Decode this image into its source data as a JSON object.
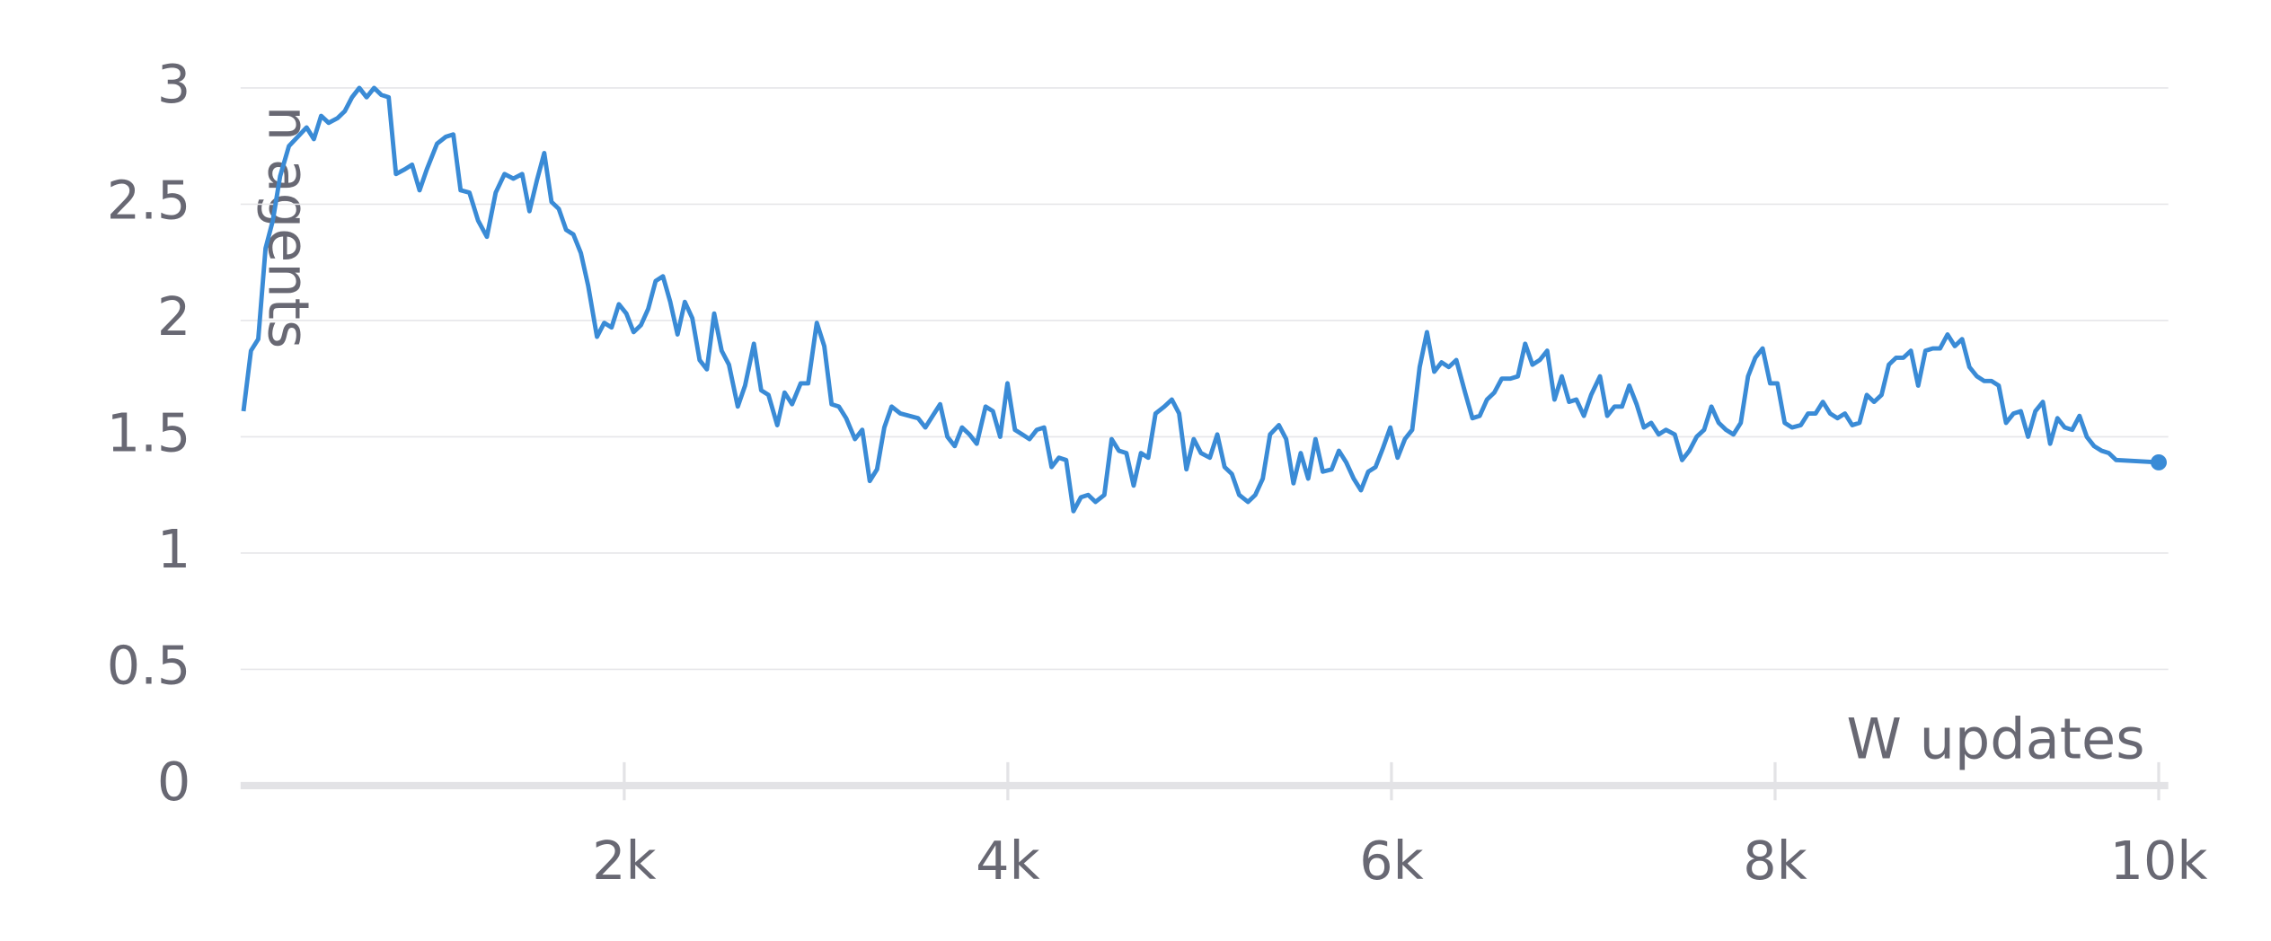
{
  "chart_data": {
    "type": "line",
    "x_label": "W updates",
    "y_label": "n agents",
    "color": "#3a8bd6",
    "grid": true,
    "xlim": [
      0,
      10050
    ],
    "ylim": [
      0,
      3
    ],
    "xticks": [
      {
        "value": 2000,
        "label": "2k"
      },
      {
        "value": 4000,
        "label": "4k"
      },
      {
        "value": 6000,
        "label": "6k"
      },
      {
        "value": 8000,
        "label": "8k"
      },
      {
        "value": 10000,
        "label": "10k"
      }
    ],
    "yticks": [
      0,
      0.5,
      1,
      1.5,
      2,
      2.5,
      3
    ],
    "x": [
      15,
      54,
      92,
      130,
      168,
      206,
      252,
      298,
      344,
      382,
      420,
      459,
      505,
      543,
      581,
      619,
      657,
      696,
      734,
      772,
      810,
      856,
      894,
      933,
      971,
      1024,
      1070,
      1109,
      1147,
      1193,
      1238,
      1284,
      1330,
      1376,
      1422,
      1468,
      1506,
      1544,
      1583,
      1621,
      1659,
      1697,
      1735,
      1774,
      1812,
      1858,
      1896,
      1934,
      1972,
      2011,
      2049,
      2087,
      2125,
      2164,
      2202,
      2240,
      2278,
      2316,
      2355,
      2393,
      2431,
      2469,
      2508,
      2546,
      2592,
      2630,
      2676,
      2714,
      2752,
      2798,
      2836,
      2875,
      2920,
      2959,
      3004,
      3043,
      3081,
      3119,
      3157,
      3203,
      3241,
      3280,
      3318,
      3356,
      3394,
      3440,
      3486,
      3532,
      3570,
      3608,
      3647,
      3685,
      3723,
      3761,
      3800,
      3838,
      3884,
      3922,
      3960,
      3998,
      4037,
      4075,
      4113,
      4151,
      4189,
      4228,
      4266,
      4304,
      4342,
      4381,
      4419,
      4457,
      4503,
      4541,
      4579,
      4618,
      4656,
      4694,
      4732,
      4770,
      4816,
      4855,
      4893,
      4931,
      4969,
      5007,
      5053,
      5092,
      5130,
      5168,
      5206,
      5252,
      5290,
      5329,
      5367,
      5413,
      5451,
      5489,
      5527,
      5566,
      5604,
      5642,
      5688,
      5726,
      5764,
      5803,
      5841,
      5879,
      5917,
      5955,
      5994,
      6032,
      6070,
      6108,
      6147,
      6185,
      6223,
      6261,
      6299,
      6338,
      6384,
      6422,
      6460,
      6498,
      6536,
      6575,
      6620,
      6659,
      6697,
      6735,
      6773,
      6812,
      6850,
      6888,
      6926,
      6964,
      7003,
      7041,
      7087,
      7125,
      7163,
      7202,
      7240,
      7278,
      7316,
      7354,
      7393,
      7431,
      7477,
      7515,
      7553,
      7591,
      7630,
      7668,
      7706,
      7744,
      7783,
      7821,
      7859,
      7897,
      7935,
      7974,
      8012,
      8050,
      8088,
      8134,
      8172,
      8211,
      8249,
      8287,
      8325,
      8364,
      8402,
      8440,
      8478,
      8516,
      8555,
      8593,
      8631,
      8669,
      8708,
      8746,
      8784,
      8822,
      8860,
      8899,
      8937,
      8975,
      9013,
      9052,
      9090,
      9128,
      9166,
      9204,
      9243,
      9281,
      9319,
      9357,
      9396,
      9434,
      9472,
      9510,
      9549,
      9587,
      9625,
      9663,
      9702,
      9740,
      9778,
      10000
    ],
    "values": [
      1.61,
      1.87,
      1.92,
      2.31,
      2.43,
      2.62,
      2.75,
      2.79,
      2.83,
      2.78,
      2.88,
      2.85,
      2.87,
      2.9,
      2.96,
      3.0,
      2.96,
      3.0,
      2.97,
      2.96,
      2.63,
      2.65,
      2.67,
      2.56,
      2.65,
      2.76,
      2.79,
      2.8,
      2.56,
      2.55,
      2.43,
      2.36,
      2.55,
      2.63,
      2.61,
      2.63,
      2.47,
      2.6,
      2.72,
      2.51,
      2.48,
      2.39,
      2.37,
      2.29,
      2.15,
      1.93,
      1.99,
      1.97,
      2.07,
      2.03,
      1.95,
      1.98,
      2.05,
      2.17,
      2.19,
      2.08,
      1.94,
      2.08,
      2.01,
      1.83,
      1.79,
      2.03,
      1.87,
      1.81,
      1.63,
      1.72,
      1.9,
      1.7,
      1.68,
      1.55,
      1.69,
      1.64,
      1.73,
      1.73,
      1.99,
      1.89,
      1.64,
      1.63,
      1.58,
      1.49,
      1.53,
      1.31,
      1.36,
      1.54,
      1.63,
      1.6,
      1.59,
      1.58,
      1.54,
      1.59,
      1.64,
      1.5,
      1.46,
      1.54,
      1.51,
      1.47,
      1.63,
      1.61,
      1.5,
      1.73,
      1.53,
      1.51,
      1.49,
      1.53,
      1.54,
      1.37,
      1.41,
      1.4,
      1.18,
      1.24,
      1.25,
      1.22,
      1.25,
      1.49,
      1.44,
      1.43,
      1.29,
      1.43,
      1.41,
      1.6,
      1.63,
      1.66,
      1.6,
      1.36,
      1.49,
      1.43,
      1.41,
      1.51,
      1.37,
      1.34,
      1.25,
      1.22,
      1.25,
      1.32,
      1.51,
      1.55,
      1.49,
      1.3,
      1.43,
      1.32,
      1.49,
      1.35,
      1.36,
      1.44,
      1.39,
      1.32,
      1.27,
      1.35,
      1.37,
      1.45,
      1.54,
      1.41,
      1.49,
      1.53,
      1.8,
      1.95,
      1.78,
      1.82,
      1.8,
      1.83,
      1.69,
      1.58,
      1.59,
      1.66,
      1.69,
      1.75,
      1.75,
      1.76,
      1.9,
      1.81,
      1.83,
      1.87,
      1.66,
      1.76,
      1.65,
      1.66,
      1.59,
      1.68,
      1.76,
      1.59,
      1.63,
      1.63,
      1.72,
      1.64,
      1.54,
      1.56,
      1.51,
      1.53,
      1.51,
      1.4,
      1.44,
      1.5,
      1.53,
      1.63,
      1.56,
      1.53,
      1.51,
      1.56,
      1.76,
      1.84,
      1.88,
      1.73,
      1.73,
      1.56,
      1.54,
      1.55,
      1.6,
      1.6,
      1.65,
      1.6,
      1.58,
      1.6,
      1.55,
      1.56,
      1.68,
      1.65,
      1.68,
      1.81,
      1.84,
      1.84,
      1.87,
      1.72,
      1.87,
      1.88,
      1.88,
      1.94,
      1.89,
      1.92,
      1.8,
      1.76,
      1.74,
      1.74,
      1.72,
      1.56,
      1.6,
      1.61,
      1.5,
      1.61,
      1.65,
      1.47,
      1.58,
      1.54,
      1.53,
      1.59,
      1.5,
      1.46,
      1.44,
      1.43,
      1.4,
      1.39
    ]
  }
}
